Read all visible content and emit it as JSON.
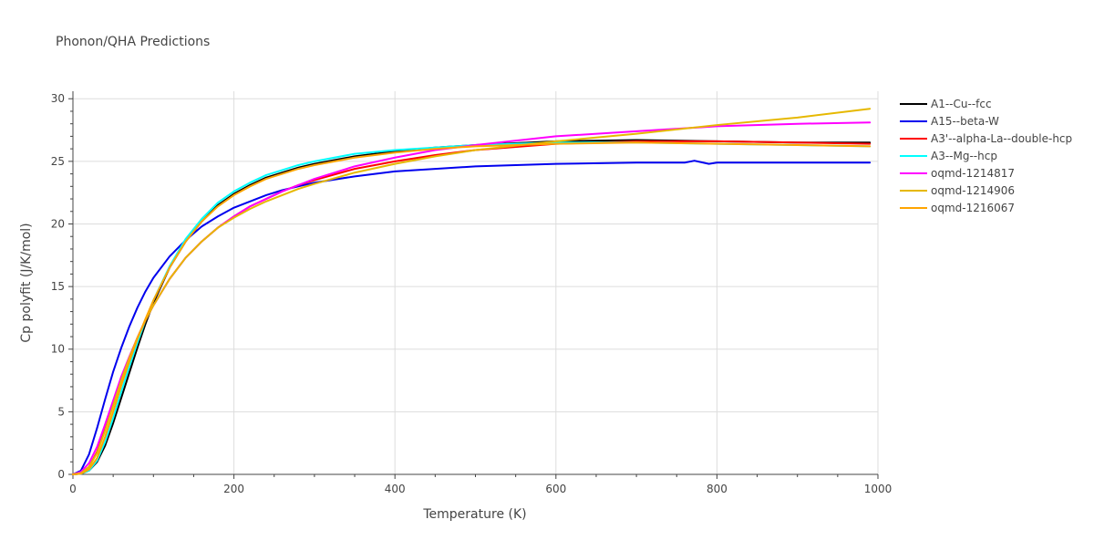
{
  "chart_data": {
    "type": "line",
    "title": "Phonon/QHA Predictions",
    "xlabel": "Temperature (K)",
    "ylabel": "Cp polyfit (J/K/mol)",
    "xlim": [
      0,
      1000
    ],
    "ylim": [
      0,
      30.6
    ],
    "xticks": [
      0,
      200,
      400,
      600,
      800,
      1000
    ],
    "yticks": [
      0,
      5,
      10,
      15,
      20,
      25,
      30
    ],
    "grid": true,
    "legend_position": "right",
    "series": [
      {
        "name": "A1--Cu--fcc",
        "color": "#000000",
        "x": [
          0,
          10,
          20,
          30,
          40,
          50,
          60,
          70,
          80,
          90,
          100,
          120,
          140,
          160,
          180,
          200,
          220,
          240,
          260,
          280,
          300,
          350,
          400,
          450,
          500,
          600,
          700,
          800,
          900,
          990
        ],
        "y": [
          0,
          0.05,
          0.3,
          1.0,
          2.3,
          4.1,
          6.1,
          8.1,
          10.1,
          12.0,
          13.7,
          16.5,
          18.6,
          20.2,
          21.5,
          22.4,
          23.1,
          23.7,
          24.1,
          24.5,
          24.8,
          25.4,
          25.8,
          26.1,
          26.3,
          26.6,
          26.7,
          26.6,
          26.5,
          26.5
        ]
      },
      {
        "name": "A15--beta-W",
        "color": "#0000ee",
        "x": [
          0,
          10,
          20,
          30,
          40,
          50,
          60,
          70,
          80,
          90,
          100,
          120,
          140,
          160,
          180,
          200,
          220,
          240,
          260,
          280,
          300,
          350,
          400,
          450,
          500,
          600,
          700,
          760,
          772,
          790,
          800,
          900,
          990
        ],
        "y": [
          0,
          0.3,
          1.6,
          3.7,
          6.0,
          8.2,
          10.1,
          11.8,
          13.3,
          14.6,
          15.7,
          17.4,
          18.7,
          19.8,
          20.6,
          21.3,
          21.8,
          22.3,
          22.7,
          23.0,
          23.3,
          23.8,
          24.2,
          24.4,
          24.6,
          24.8,
          24.9,
          24.9,
          25.05,
          24.8,
          24.9,
          24.9,
          24.9
        ]
      },
      {
        "name": "A3'--alpha-La--double-hcp",
        "color": "#ff0000",
        "x": [
          0,
          10,
          20,
          30,
          40,
          50,
          60,
          70,
          80,
          90,
          100,
          120,
          140,
          160,
          180,
          200,
          220,
          240,
          260,
          280,
          300,
          350,
          400,
          450,
          500,
          600,
          700,
          800,
          900,
          990
        ],
        "y": [
          0,
          0.1,
          0.6,
          1.8,
          3.6,
          5.6,
          7.6,
          9.3,
          10.9,
          12.3,
          13.5,
          15.6,
          17.3,
          18.6,
          19.7,
          20.6,
          21.4,
          22.0,
          22.6,
          23.1,
          23.5,
          24.4,
          25.0,
          25.5,
          25.9,
          26.4,
          26.6,
          26.6,
          26.5,
          26.4
        ]
      },
      {
        "name": "A3--Mg--hcp",
        "color": "#00ffff",
        "x": [
          0,
          10,
          20,
          30,
          40,
          50,
          60,
          70,
          80,
          90,
          100,
          120,
          140,
          160,
          180,
          200,
          220,
          240,
          260,
          280,
          300,
          350,
          400,
          450,
          500,
          600,
          700,
          800,
          900,
          990
        ],
        "y": [
          0,
          0.05,
          0.3,
          1.1,
          2.6,
          4.5,
          6.6,
          8.6,
          10.5,
          12.3,
          13.9,
          16.6,
          18.8,
          20.4,
          21.7,
          22.6,
          23.3,
          23.9,
          24.3,
          24.7,
          25.0,
          25.6,
          25.9,
          26.1,
          26.3,
          26.5,
          26.5,
          26.4,
          26.3,
          26.2
        ]
      },
      {
        "name": "oqmd-1214817",
        "color": "#ff00ff",
        "x": [
          0,
          10,
          20,
          30,
          40,
          50,
          60,
          70,
          80,
          90,
          100,
          120,
          140,
          160,
          180,
          200,
          220,
          240,
          260,
          280,
          300,
          350,
          400,
          450,
          500,
          600,
          700,
          800,
          900,
          990
        ],
        "y": [
          0,
          0.2,
          0.9,
          2.2,
          4.0,
          5.9,
          7.8,
          9.4,
          10.9,
          12.3,
          13.5,
          15.6,
          17.3,
          18.6,
          19.7,
          20.6,
          21.4,
          22.0,
          22.6,
          23.1,
          23.6,
          24.6,
          25.3,
          25.9,
          26.3,
          27.0,
          27.4,
          27.8,
          28.0,
          28.1
        ]
      },
      {
        "name": "oqmd-1214906",
        "color": "#e6b800",
        "x": [
          0,
          10,
          20,
          30,
          40,
          50,
          60,
          70,
          80,
          90,
          100,
          120,
          140,
          160,
          180,
          200,
          220,
          240,
          260,
          280,
          300,
          350,
          400,
          450,
          500,
          600,
          700,
          800,
          900,
          990
        ],
        "y": [
          0,
          0.1,
          0.6,
          1.7,
          3.5,
          5.5,
          7.5,
          9.3,
          10.9,
          12.3,
          13.5,
          15.6,
          17.3,
          18.6,
          19.7,
          20.5,
          21.2,
          21.8,
          22.3,
          22.8,
          23.2,
          24.1,
          24.8,
          25.4,
          25.9,
          26.6,
          27.2,
          27.9,
          28.5,
          29.2
        ]
      },
      {
        "name": "oqmd-1216067",
        "color": "#ffa500",
        "x": [
          0,
          10,
          20,
          30,
          40,
          50,
          60,
          70,
          80,
          90,
          100,
          120,
          140,
          160,
          180,
          200,
          220,
          240,
          260,
          280,
          300,
          350,
          400,
          450,
          500,
          600,
          700,
          800,
          900,
          990
        ],
        "y": [
          0,
          0.05,
          0.4,
          1.3,
          3.0,
          5.0,
          7.1,
          9.0,
          10.8,
          12.4,
          13.9,
          16.5,
          18.6,
          20.2,
          21.4,
          22.3,
          23.0,
          23.6,
          24.0,
          24.4,
          24.7,
          25.3,
          25.7,
          26.0,
          26.2,
          26.4,
          26.5,
          26.4,
          26.3,
          26.2
        ]
      }
    ]
  }
}
